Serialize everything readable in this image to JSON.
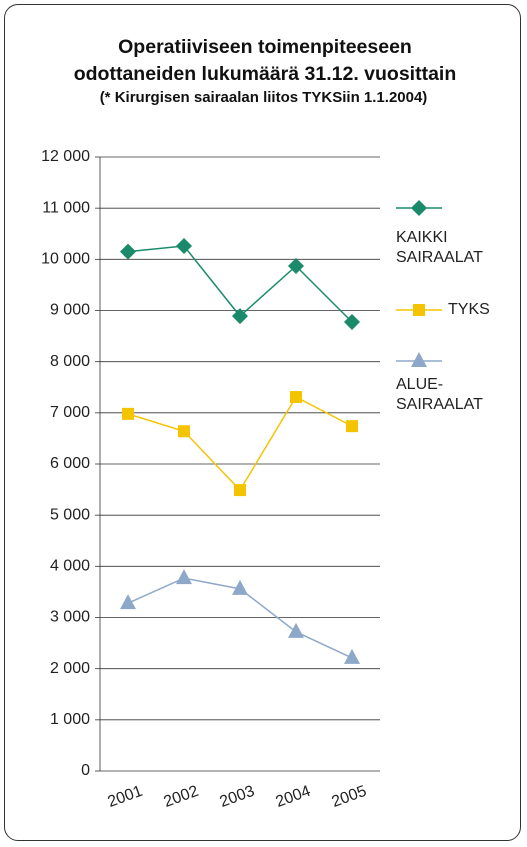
{
  "chart_data": {
    "type": "line",
    "title": "Operatiiviseen toimenpiteeseen odottaneiden lukumäärä 31.12. vuosittain",
    "subtitle": "(* Kirurgisen sairaalan liitos TYKSiin 1.1.2004)",
    "categories": [
      "2001",
      "2002",
      "2003",
      "2004",
      "2005"
    ],
    "series": [
      {
        "name": "KAIKKI SAIRAALAT",
        "color": "#1a8a6a",
        "marker": "diamond",
        "values": [
          10150,
          10260,
          8890,
          9870,
          8775
        ]
      },
      {
        "name": "TYKS",
        "color": "#f5c400",
        "marker": "square",
        "values": [
          6980,
          6640,
          5490,
          7310,
          6740
        ]
      },
      {
        "name": "ALUE-SAIRAALAT",
        "color": "#8ea8c9",
        "marker": "triangle",
        "values": [
          3280,
          3770,
          3560,
          2720,
          2210
        ]
      }
    ],
    "ylim": [
      0,
      12000
    ],
    "yticks": [
      0,
      {
        "value": 1000,
        "label": "1 000"
      },
      {
        "value": 2000,
        "label": "2 000"
      },
      {
        "value": 3000,
        "label": "3 000"
      },
      {
        "value": 4000,
        "label": "4 000"
      },
      {
        "value": 5000,
        "label": "5 000"
      },
      {
        "value": 6000,
        "label": "6 000"
      },
      {
        "value": 7000,
        "label": "7 000"
      },
      {
        "value": 8000,
        "label": "8 000"
      },
      {
        "value": 9000,
        "label": "9 000"
      },
      {
        "value": 10000,
        "label": "10 000"
      },
      {
        "value": 11000,
        "label": "11 000"
      },
      {
        "value": 12000,
        "label": "12 000"
      }
    ],
    "grid": true
  }
}
